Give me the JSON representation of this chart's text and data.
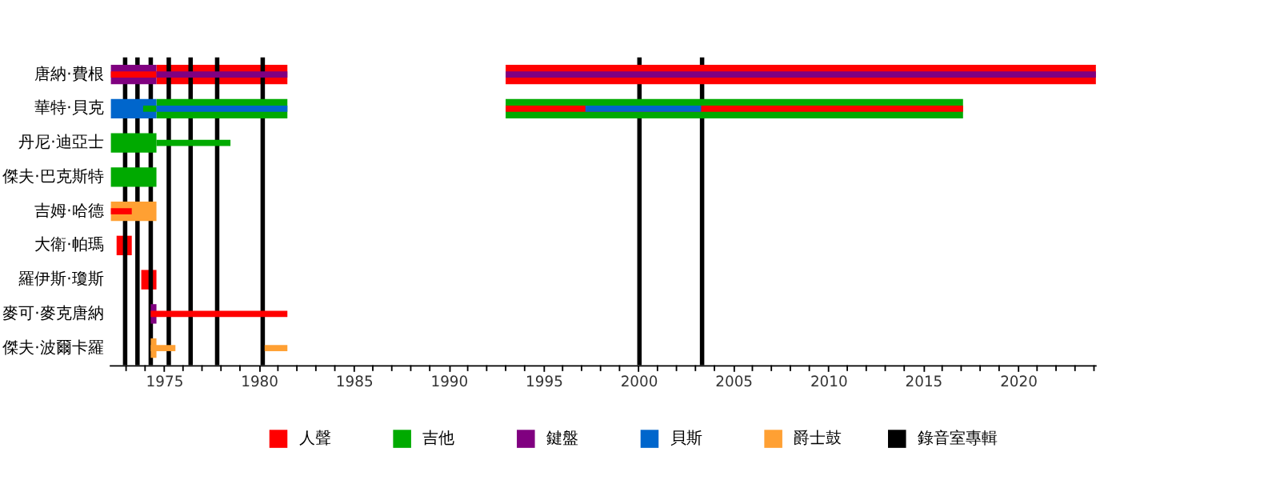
{
  "chart_data": {
    "type": "bar",
    "orientation": "horizontal",
    "categories": [
      "唐納·費根",
      "華特·貝克",
      "丹尼·迪亞士",
      "傑夫·巴克斯特",
      "吉姆·哈德",
      "大衛·帕瑪",
      "羅伊斯·瓊斯",
      "麥可·麥克唐納",
      "傑夫·波爾卡羅"
    ],
    "series": [
      {
        "name": "人聲",
        "color": "#ff0000",
        "base": [
          1974.6,
          null,
          null,
          null,
          null,
          1972.5,
          1973.8,
          null,
          null
        ],
        "values": [
          6.9,
          null,
          null,
          null,
          null,
          0.8,
          0.8,
          null,
          null
        ]
      },
      {
        "name": "吉他",
        "color": "#00aa00",
        "base": [
          null,
          1974.6,
          1972.2,
          1972.2,
          null,
          null,
          null,
          null,
          null
        ],
        "values": [
          null,
          6.9,
          2.4,
          2.4,
          null,
          null,
          null,
          null,
          null
        ]
      },
      {
        "name": "鍵盤",
        "color": "#800080",
        "base": [
          1972.2,
          null,
          null,
          null,
          null,
          null,
          null,
          1974.3,
          null
        ],
        "values": [
          2.4,
          null,
          null,
          null,
          null,
          null,
          null,
          0.3,
          null
        ]
      },
      {
        "name": "貝斯",
        "color": "#0066cc",
        "base": [
          null,
          1972.2,
          null,
          null,
          null,
          null,
          null,
          null,
          null
        ],
        "values": [
          null,
          2.4,
          null,
          null,
          null,
          null,
          null,
          null,
          null
        ]
      },
      {
        "name": "爵士鼓",
        "color": "#ffa033",
        "base": [
          null,
          null,
          null,
          null,
          1972.2,
          null,
          null,
          null,
          1974.3
        ],
        "values": [
          null,
          null,
          null,
          null,
          2.4,
          null,
          null,
          null,
          0.3
        ]
      },
      {
        "color": "#ff0000",
        "base": [
          1993.0,
          null,
          null,
          null,
          null,
          null,
          null,
          null,
          null
        ],
        "values": [
          31.1,
          null,
          null,
          null,
          null,
          null,
          null,
          null,
          null
        ]
      },
      {
        "color": "#00aa00",
        "base": [
          null,
          1993.0,
          null,
          null,
          null,
          null,
          null,
          null,
          null
        ],
        "values": [
          null,
          24.1,
          null,
          null,
          null,
          null,
          null,
          null,
          null
        ]
      },
      {
        "color": "#ff0000",
        "base": [
          1972.2,
          1993.0,
          null,
          null,
          1972.2,
          null,
          null,
          1974.3,
          null
        ],
        "values": [
          2.4,
          24.1,
          null,
          null,
          1.1,
          null,
          null,
          7.2,
          null
        ]
      },
      {
        "color": "#00aa00",
        "base": [
          null,
          1973.9,
          1974.6,
          null,
          null,
          null,
          null,
          null,
          null
        ],
        "values": [
          null,
          0.7,
          3.9,
          null,
          null,
          null,
          null,
          null,
          null
        ]
      },
      {
        "color": "#800080",
        "base": [
          1974.6,
          null,
          null,
          null,
          null,
          null,
          null,
          null,
          null
        ],
        "values": [
          6.9,
          null,
          null,
          null,
          null,
          null,
          null,
          null,
          null
        ]
      },
      {
        "color": "#800080",
        "base": [
          1993.0,
          null,
          null,
          null,
          null,
          null,
          null,
          null,
          null
        ],
        "values": [
          31.1,
          null,
          null,
          null,
          null,
          null,
          null,
          null,
          null
        ]
      },
      {
        "color": "#0066cc",
        "base": [
          null,
          1974.6,
          null,
          null,
          null,
          null,
          null,
          null,
          null
        ],
        "values": [
          null,
          6.9,
          null,
          null,
          null,
          null,
          null,
          null,
          null
        ]
      },
      {
        "color": "#0066cc",
        "base": [
          null,
          1997.2,
          null,
          null,
          null,
          null,
          null,
          null,
          null
        ],
        "values": [
          null,
          6.1,
          null,
          null,
          null,
          null,
          null,
          null,
          null
        ]
      },
      {
        "color": "#ffa033",
        "base": [
          null,
          null,
          null,
          null,
          null,
          null,
          null,
          null,
          1974.3
        ],
        "values": [
          null,
          null,
          null,
          null,
          null,
          null,
          null,
          null,
          1.3
        ]
      },
      {
        "color": "#ffa033",
        "base": [
          null,
          null,
          null,
          null,
          null,
          null,
          null,
          null,
          1980.3
        ],
        "values": [
          null,
          null,
          null,
          null,
          null,
          null,
          null,
          null,
          1.2
        ]
      }
    ],
    "ref_lines": [
      {
        "axis": "x",
        "value": 1972.95,
        "label": "錄音室專輯",
        "color": "#000000"
      },
      {
        "axis": "x",
        "value": 1973.6,
        "color": "#000000"
      },
      {
        "axis": "x",
        "value": 1974.3,
        "color": "#000000"
      },
      {
        "axis": "x",
        "value": 1975.25,
        "color": "#000000"
      },
      {
        "axis": "x",
        "value": 1976.4,
        "color": "#000000"
      },
      {
        "axis": "x",
        "value": 1977.8,
        "color": "#000000"
      },
      {
        "axis": "x",
        "value": 1980.2,
        "color": "#000000"
      },
      {
        "axis": "x",
        "value": 2000.05,
        "color": "#000000"
      },
      {
        "axis": "x",
        "value": 2003.35,
        "color": "#000000"
      }
    ],
    "xlim": [
      1972.1,
      2024.1
    ],
    "xticks": [
      {
        "value": 1973,
        "label": null
      },
      {
        "value": 1974,
        "label": null
      },
      1975,
      {
        "value": 1976,
        "label": null
      },
      {
        "value": 1977,
        "label": null
      },
      {
        "value": 1978,
        "label": null
      },
      {
        "value": 1979,
        "label": null
      },
      1980,
      {
        "value": 1981,
        "label": null
      },
      {
        "value": 1982,
        "label": null
      },
      {
        "value": 1983,
        "label": null
      },
      {
        "value": 1984,
        "label": null
      },
      1985,
      {
        "value": 1986,
        "label": null
      },
      {
        "value": 1987,
        "label": null
      },
      {
        "value": 1988,
        "label": null
      },
      {
        "value": 1989,
        "label": null
      },
      1990,
      {
        "value": 1991,
        "label": null
      },
      {
        "value": 1992,
        "label": null
      },
      {
        "value": 1993,
        "label": null
      },
      {
        "value": 1994,
        "label": null
      },
      1995,
      {
        "value": 1996,
        "label": null
      },
      {
        "value": 1997,
        "label": null
      },
      {
        "value": 1998,
        "label": null
      },
      {
        "value": 1999,
        "label": null
      },
      2000,
      {
        "value": 2001,
        "label": null
      },
      {
        "value": 2002,
        "label": null
      },
      {
        "value": 2003,
        "label": null
      },
      {
        "value": 2004,
        "label": null
      },
      2005,
      {
        "value": 2006,
        "label": null
      },
      {
        "value": 2007,
        "label": null
      },
      {
        "value": 2008,
        "label": null
      },
      {
        "value": 2009,
        "label": null
      },
      2010,
      {
        "value": 2011,
        "label": null
      },
      {
        "value": 2012,
        "label": null
      },
      {
        "value": 2013,
        "label": null
      },
      {
        "value": 2014,
        "label": null
      },
      2015,
      {
        "value": 2016,
        "label": null
      },
      {
        "value": 2017,
        "label": null
      },
      {
        "value": 2018,
        "label": null
      },
      {
        "value": 2019,
        "label": null
      },
      2020,
      {
        "value": 2021,
        "label": null
      },
      {
        "value": 2022,
        "label": null
      },
      {
        "value": 2023,
        "label": null
      },
      {
        "value": 2024,
        "label": null
      }
    ],
    "grid": false,
    "legend": "bottom"
  }
}
